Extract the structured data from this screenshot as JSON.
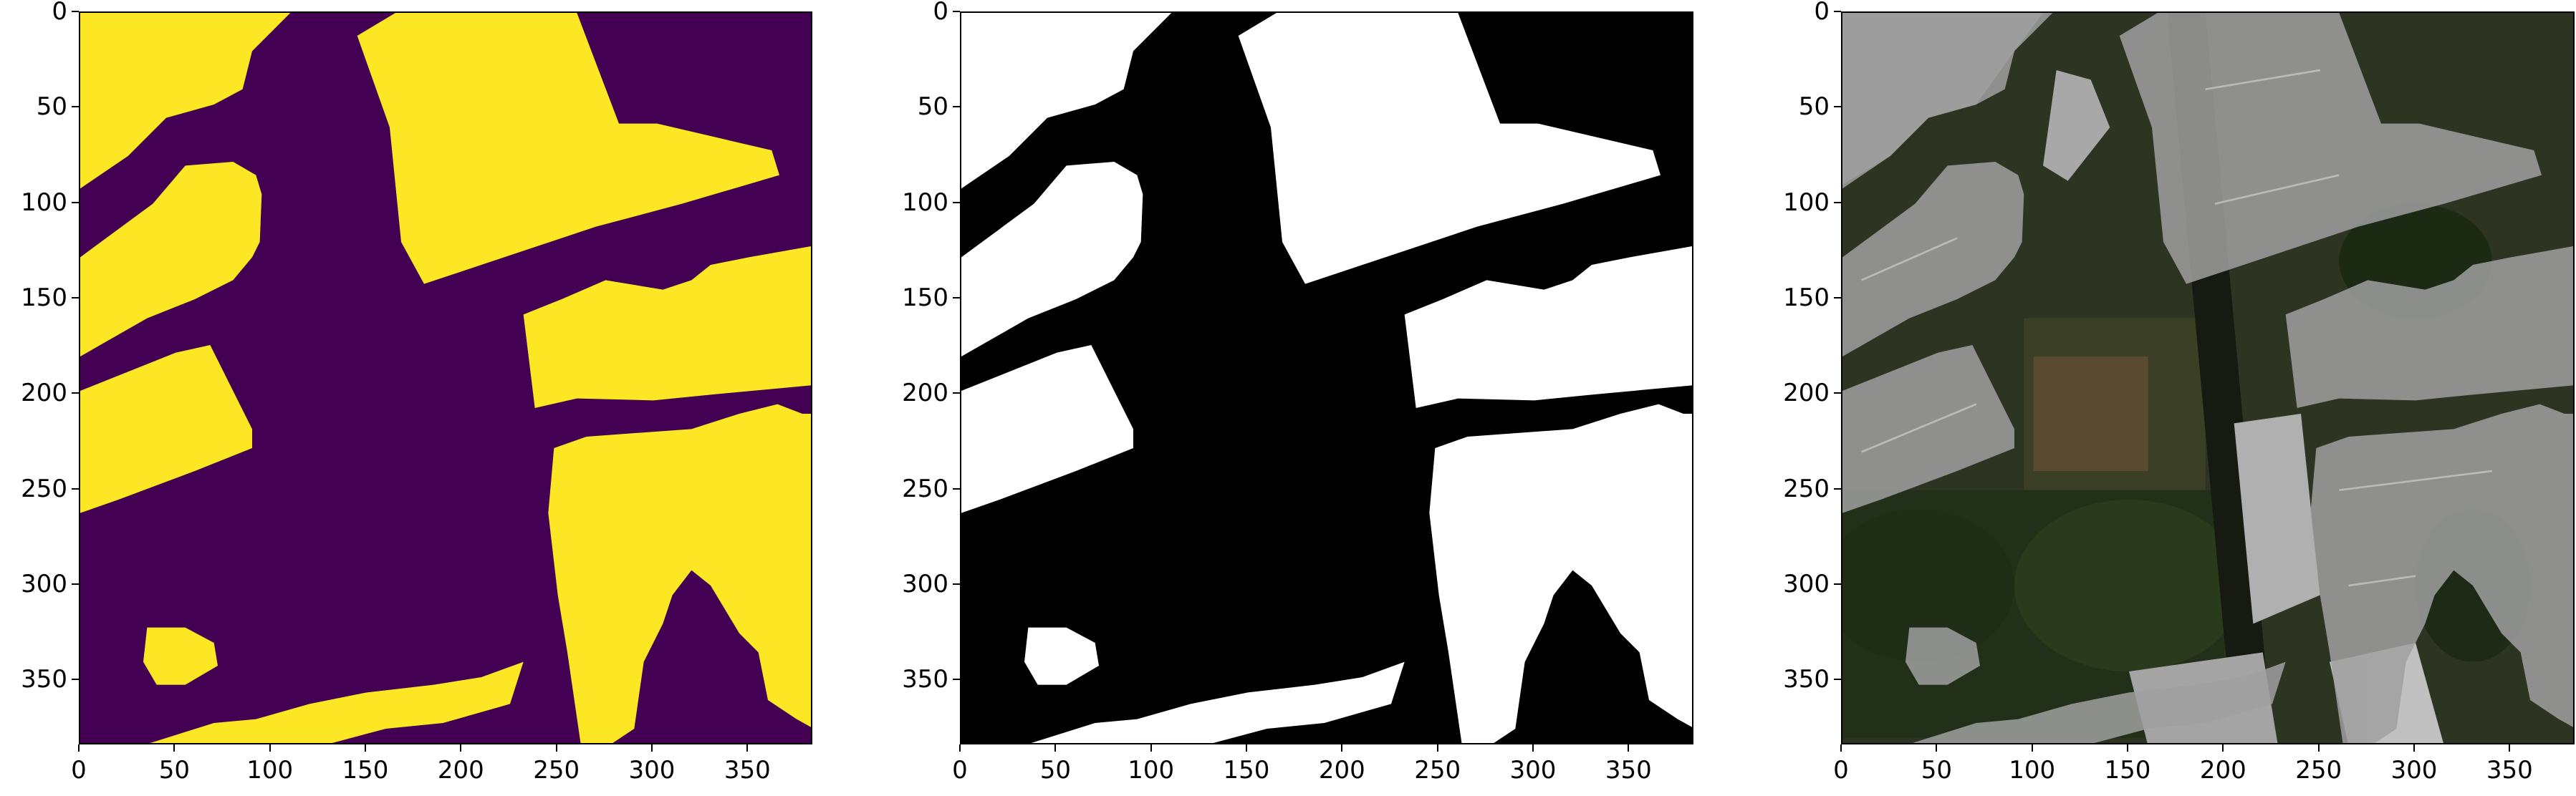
{
  "figure": {
    "panels": [
      {
        "name": "label-mask-viridis",
        "colors": {
          "background": "#440154",
          "foreground": "#FDE725"
        }
      },
      {
        "name": "binary-mask",
        "colors": {
          "background": "#000000",
          "foreground": "#FFFFFF"
        }
      },
      {
        "name": "rgb-overlay",
        "colors": {
          "overlay": "#A0A0A0"
        }
      }
    ],
    "axes": {
      "x_ticks": [
        "0",
        "50",
        "100",
        "150",
        "200",
        "250",
        "300",
        "350"
      ],
      "y_ticks": [
        "0",
        "50",
        "100",
        "150",
        "200",
        "250",
        "300",
        "350"
      ],
      "xlim": [
        0,
        383
      ],
      "ylim": [
        383,
        0
      ]
    }
  }
}
